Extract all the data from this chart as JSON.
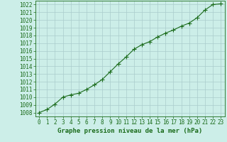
{
  "x": [
    0,
    1,
    2,
    3,
    4,
    5,
    6,
    7,
    8,
    9,
    10,
    11,
    12,
    13,
    14,
    15,
    16,
    17,
    18,
    19,
    20,
    21,
    22,
    23
  ],
  "y": [
    1008.0,
    1008.4,
    1009.1,
    1010.0,
    1010.3,
    1010.5,
    1011.0,
    1011.6,
    1012.3,
    1013.3,
    1014.3,
    1015.2,
    1016.2,
    1016.8,
    1017.2,
    1017.8,
    1018.3,
    1018.7,
    1019.2,
    1019.6,
    1020.3,
    1021.3,
    1022.0,
    1022.1
  ],
  "ylim": [
    1007.5,
    1022.5
  ],
  "xlim": [
    -0.5,
    23.5
  ],
  "ytick_min": 1008,
  "ytick_max": 1022,
  "xticks": [
    0,
    1,
    2,
    3,
    4,
    5,
    6,
    7,
    8,
    9,
    10,
    11,
    12,
    13,
    14,
    15,
    16,
    17,
    18,
    19,
    20,
    21,
    22,
    23
  ],
  "line_color": "#1a6b1a",
  "marker": "+",
  "bg_color": "#cceee8",
  "grid_color": "#aacccc",
  "xlabel": "Graphe pression niveau de la mer (hPa)",
  "xlabel_color": "#1a6b1a",
  "tick_color": "#1a6b1a",
  "spine_color": "#1a6b1a",
  "line_width": 0.8,
  "marker_size": 4,
  "marker_edge_width": 0.8,
  "font_size_label": 6.5,
  "font_size_tick": 5.5
}
